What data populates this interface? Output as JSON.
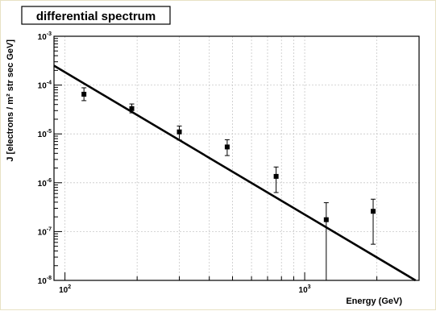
{
  "chart_data": {
    "type": "scatter",
    "title": "differential spectrum",
    "xlabel": "Energy (GeV)",
    "ylabel": "J [electrons / m² str sec GeV]",
    "x_scale": "log",
    "y_scale": "log",
    "xlim": [
      90,
      3000
    ],
    "ylim": [
      1e-08,
      0.001
    ],
    "grid": true,
    "x_ticks": [
      {
        "value": 100,
        "base": "10",
        "exp": "2"
      },
      {
        "value": 1000,
        "base": "10",
        "exp": "3"
      }
    ],
    "y_ticks": [
      {
        "value": 1e-08,
        "base": "10",
        "exp": "-8"
      },
      {
        "value": 1e-07,
        "base": "10",
        "exp": "-7"
      },
      {
        "value": 1e-06,
        "base": "10",
        "exp": "-6"
      },
      {
        "value": 1e-05,
        "base": "10",
        "exp": "-5"
      },
      {
        "value": 0.0001,
        "base": "10",
        "exp": "-4"
      },
      {
        "value": 0.001,
        "base": "10",
        "exp": "-3"
      }
    ],
    "points": [
      {
        "x": 120,
        "y": 6.5e-05,
        "y_low": 4.8e-05,
        "y_high": 8.8e-05
      },
      {
        "x": 190,
        "y": 3.3e-05,
        "y_low": 2.7e-05,
        "y_high": 4.1e-05
      },
      {
        "x": 300,
        "y": 1.1e-05,
        "y_low": 7.5e-06,
        "y_high": 1.45e-05
      },
      {
        "x": 475,
        "y": 5.4e-06,
        "y_low": 3.6e-06,
        "y_high": 7.6e-06
      },
      {
        "x": 760,
        "y": 1.35e-06,
        "y_low": 6.3e-07,
        "y_high": 2.1e-06
      },
      {
        "x": 1230,
        "y": 1.75e-07,
        "y_low": 1e-08,
        "y_high": 3.9e-07
      },
      {
        "x": 1930,
        "y": 2.6e-07,
        "y_low": 5.5e-08,
        "y_high": 4.6e-07
      }
    ],
    "fit_line": {
      "x": [
        90,
        2900
      ],
      "y": [
        0.00025,
        1e-08
      ]
    }
  }
}
